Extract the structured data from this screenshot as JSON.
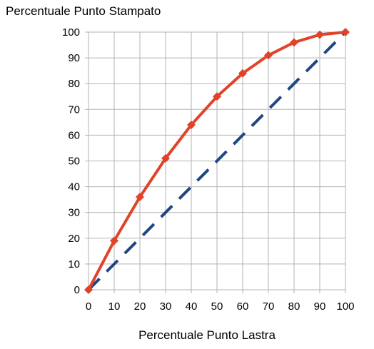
{
  "chart_data": {
    "type": "line",
    "title": "",
    "ylabel": "Percentuale Punto Stampato",
    "xlabel": "Percentuale Punto Lastra",
    "x": [
      0,
      10,
      20,
      30,
      40,
      50,
      60,
      70,
      80,
      90,
      100
    ],
    "xlim": [
      0,
      100
    ],
    "ylim": [
      0,
      100
    ],
    "xticks": [
      0,
      10,
      20,
      30,
      40,
      50,
      60,
      70,
      80,
      90,
      100
    ],
    "yticks": [
      0,
      10,
      20,
      30,
      40,
      50,
      60,
      70,
      80,
      90,
      100
    ],
    "grid": true,
    "series": [
      {
        "values": [
          0,
          19,
          36,
          51,
          64,
          75,
          84,
          91,
          96,
          99,
          100
        ],
        "color": "#e0432a",
        "style": "solid",
        "marker": "diamond"
      },
      {
        "values": [
          0,
          10,
          20,
          30,
          40,
          50,
          60,
          70,
          80,
          90,
          100
        ],
        "color": "#1f4682",
        "style": "dashed",
        "marker": "none"
      }
    ]
  }
}
